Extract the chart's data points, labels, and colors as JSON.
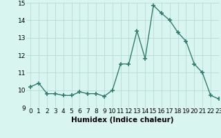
{
  "x": [
    0,
    1,
    2,
    3,
    4,
    5,
    6,
    7,
    8,
    9,
    10,
    11,
    12,
    13,
    14,
    15,
    16,
    17,
    18,
    19,
    20,
    21,
    22,
    23
  ],
  "y": [
    10.2,
    10.4,
    9.8,
    9.8,
    9.7,
    9.7,
    9.9,
    9.8,
    9.8,
    9.65,
    10.0,
    11.5,
    11.5,
    13.4,
    11.8,
    14.85,
    14.4,
    14.0,
    13.3,
    12.8,
    11.5,
    11.0,
    9.7,
    9.5
  ],
  "line_color": "#2e7d6e",
  "marker": "+",
  "marker_size": 4,
  "marker_lw": 1.2,
  "line_width": 1.0,
  "bg_color": "#d8f5f0",
  "grid_color": "#b0d8d0",
  "xlabel": "Humidex (Indice chaleur)",
  "ylim": [
    9,
    15
  ],
  "xlim": [
    -0.5,
    23
  ],
  "yticks": [
    9,
    10,
    11,
    12,
    13,
    14,
    15
  ],
  "xticks": [
    0,
    1,
    2,
    3,
    4,
    5,
    6,
    7,
    8,
    9,
    10,
    11,
    12,
    13,
    14,
    15,
    16,
    17,
    18,
    19,
    20,
    21,
    22,
    23
  ],
  "xlabel_fontsize": 7.5,
  "tick_fontsize": 6.5
}
